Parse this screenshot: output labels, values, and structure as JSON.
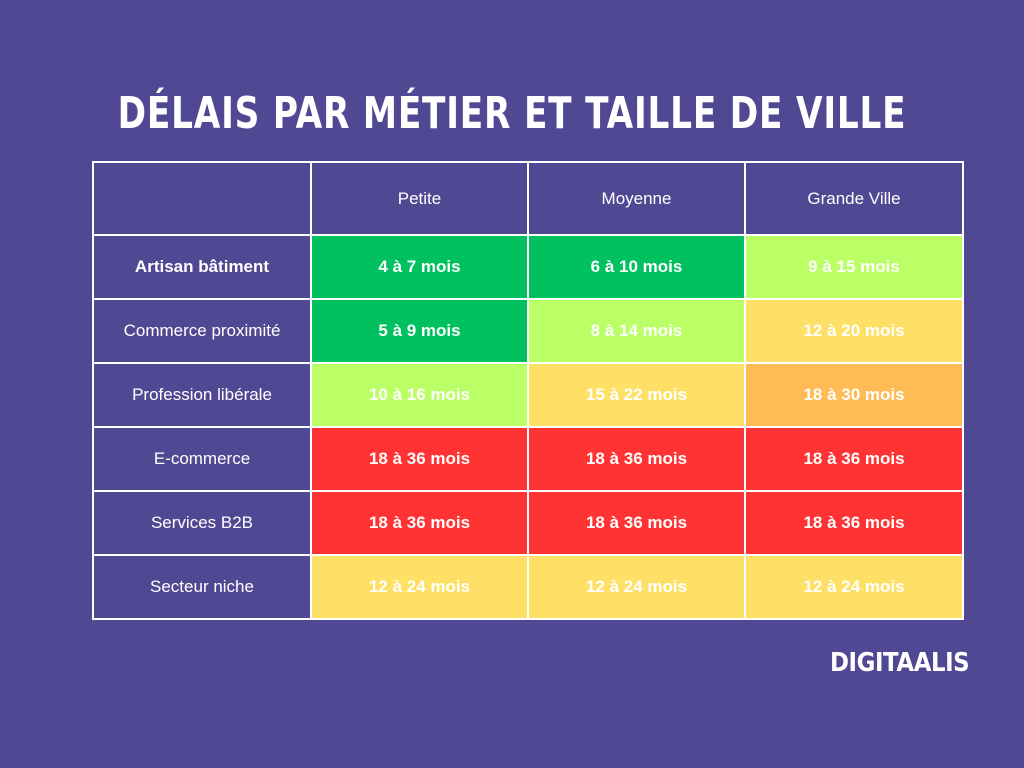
{
  "title": "DÉLAIS PAR MÉTIER ET TAILLE DE VILLE",
  "table": {
    "columns": [
      "Petite",
      "Moyenne",
      "Grande Ville"
    ],
    "rows": [
      {
        "label": "Artisan bâtiment",
        "values": [
          "4 à 7 mois",
          "6 à 10 mois",
          "9 à 15 mois"
        ],
        "colors": [
          "#00c060",
          "#00c060",
          "#bbff66"
        ]
      },
      {
        "label": "Commerce proximité",
        "values": [
          "5 à 9 mois",
          "8 à 14 mois",
          "12 à 20 mois"
        ],
        "colors": [
          "#00c060",
          "#bbff66",
          "#ffe066"
        ]
      },
      {
        "label": "Profession libérale",
        "values": [
          "10 à 16 mois",
          "15 à 22 mois",
          "18 à 30 mois"
        ],
        "colors": [
          "#bbff66",
          "#ffe066",
          "#ffbb55"
        ]
      },
      {
        "label": "E-commerce",
        "values": [
          "18 à 36 mois",
          "18 à 36 mois",
          "18 à 36 mois"
        ],
        "colors": [
          "#ff3333",
          "#ff3333",
          "#ff3333"
        ]
      },
      {
        "label": "Services B2B",
        "values": [
          "18 à 36 mois",
          "18 à 36 mois",
          "18 à 36 mois"
        ],
        "colors": [
          "#ff3333",
          "#ff3333",
          "#ff3333"
        ]
      },
      {
        "label": "Secteur niche",
        "values": [
          "12 à 24 mois",
          "12 à 24 mois",
          "12 à 24 mois"
        ],
        "colors": [
          "#ffe066",
          "#ffe066",
          "#ffe066"
        ]
      }
    ]
  },
  "logo": "DIGITAALIS",
  "colors": {
    "background": "#514893",
    "border": "#ffffff",
    "green": "#00c060",
    "lime": "#bbff66",
    "yellow": "#ffe066",
    "orange": "#ffbb55",
    "red": "#ff3333"
  }
}
